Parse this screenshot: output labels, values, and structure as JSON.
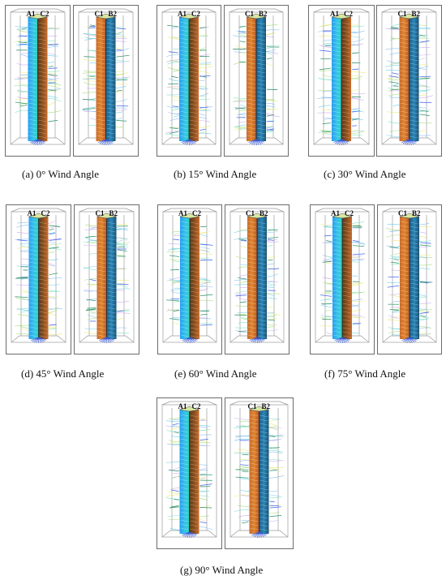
{
  "panels": [
    {
      "id": "a",
      "caption": "(a)  0° Wind Angle",
      "left_labels": [
        "A1",
        "C2"
      ],
      "right_labels": [
        "C1",
        "B2"
      ]
    },
    {
      "id": "b",
      "caption": "(b) 15° Wind Angle",
      "left_labels": [
        "A1",
        "C2"
      ],
      "right_labels": [
        "C1",
        "B2"
      ]
    },
    {
      "id": "c",
      "caption": "(c) 30° Wind Angle",
      "left_labels": [
        "A1",
        "C2"
      ],
      "right_labels": [
        "C1",
        "B2"
      ]
    },
    {
      "id": "d",
      "caption": "(d) 45° Wind Angle",
      "left_labels": [
        "A1",
        "C2"
      ],
      "right_labels": [
        "C1",
        "B2"
      ]
    },
    {
      "id": "e",
      "caption": "(e) 60° Wind Angle",
      "left_labels": [
        "A1",
        "C2"
      ],
      "right_labels": [
        "C1",
        "B2"
      ]
    },
    {
      "id": "f",
      "caption": "(f) 75° Wind Angle",
      "left_labels": [
        "A1",
        "C2"
      ],
      "right_labels": [
        "C1",
        "B2"
      ]
    },
    {
      "id": "g",
      "caption": "(g) 90° Wind Angle",
      "left_labels": [
        "A1",
        "C2"
      ],
      "right_labels": [
        "C1",
        "B2"
      ]
    }
  ]
}
